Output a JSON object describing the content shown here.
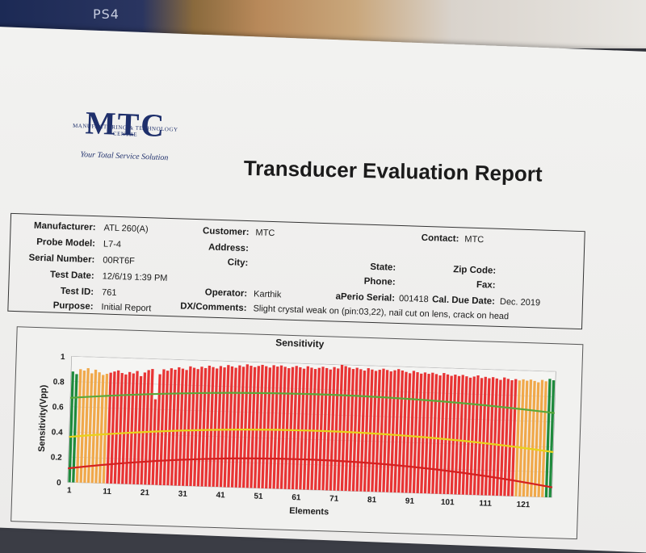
{
  "background": {
    "ps_logo": "PS4"
  },
  "logo": {
    "name": "MTC",
    "subtitle": "MANUFACTURING & TECHNOLOGY CENTRE",
    "tagline": "Your Total Service Solution"
  },
  "report": {
    "title": "Transducer Evaluation Report"
  },
  "fields": {
    "manufacturer": {
      "label": "Manufacturer:",
      "value": "ATL 260(A)"
    },
    "probe_model": {
      "label": "Probe Model:",
      "value": "L7-4"
    },
    "serial_number": {
      "label": "Serial Number:",
      "value": "00RT6F"
    },
    "test_date": {
      "label": "Test Date:",
      "value": "12/6/19 1:39 PM"
    },
    "test_id": {
      "label": "Test ID:",
      "value": "761"
    },
    "purpose": {
      "label": "Purpose:",
      "value": "Initial Report"
    },
    "customer": {
      "label": "Customer:",
      "value": "MTC"
    },
    "address": {
      "label": "Address:",
      "value": ""
    },
    "city": {
      "label": "City:",
      "value": ""
    },
    "operator": {
      "label": "Operator:",
      "value": "Karthik"
    },
    "dx_comments": {
      "label": "DX/Comments:",
      "value": "Slight crystal weak on (pin:03,22), nail cut on lens, crack on head"
    },
    "contact": {
      "label": "Contact:",
      "value": "MTC"
    },
    "state": {
      "label": "State:",
      "value": ""
    },
    "phone": {
      "label": "Phone:",
      "value": ""
    },
    "aperio_serial": {
      "label": "aPerio Serial:",
      "value": "001418"
    },
    "zip_code": {
      "label": "Zip Code:",
      "value": ""
    },
    "fax": {
      "label": "Fax:",
      "value": ""
    },
    "cal_due_date": {
      "label": "Cal. Due Date:",
      "value": "Dec. 2019"
    }
  },
  "colors": {
    "green": "#1e8a3c",
    "orange": "#f0a84a",
    "red": "#e83434",
    "green_line": "#5aa83a",
    "yellow_line": "#e8d21a",
    "red_line": "#d42020"
  },
  "chart_data": {
    "type": "bar",
    "title": "Sensitivity",
    "xlabel": "Elements",
    "ylabel": "Sensitivity(Vpp)",
    "ylim": [
      0,
      1
    ],
    "y_ticks": [
      "0",
      "0.2",
      "0.4",
      "0.6",
      "0.8",
      "1"
    ],
    "x_ticks": [
      "1",
      "11",
      "21",
      "31",
      "41",
      "51",
      "61",
      "71",
      "81",
      "91",
      "101",
      "111",
      "121"
    ],
    "elements": 128,
    "values": [
      0.88,
      0.86,
      0.9,
      0.89,
      0.91,
      0.87,
      0.9,
      0.88,
      0.86,
      0.87,
      0.88,
      0.89,
      0.9,
      0.88,
      0.87,
      0.89,
      0.88,
      0.9,
      0.86,
      0.89,
      0.91,
      0.92,
      0.68,
      0.88,
      0.92,
      0.91,
      0.93,
      0.92,
      0.94,
      0.93,
      0.92,
      0.95,
      0.94,
      0.93,
      0.95,
      0.94,
      0.96,
      0.95,
      0.94,
      0.96,
      0.95,
      0.97,
      0.96,
      0.95,
      0.97,
      0.96,
      0.98,
      0.97,
      0.96,
      0.97,
      0.98,
      0.97,
      0.96,
      0.98,
      0.97,
      0.98,
      0.97,
      0.96,
      0.97,
      0.98,
      0.97,
      0.96,
      0.98,
      0.97,
      0.96,
      0.97,
      0.98,
      0.97,
      0.96,
      0.98,
      0.97,
      1.0,
      0.99,
      0.98,
      0.97,
      0.98,
      0.97,
      0.96,
      0.98,
      0.97,
      0.96,
      0.97,
      0.98,
      0.97,
      0.96,
      0.97,
      0.98,
      0.97,
      0.96,
      0.95,
      0.97,
      0.96,
      0.95,
      0.96,
      0.95,
      0.96,
      0.95,
      0.94,
      0.96,
      0.95,
      0.94,
      0.95,
      0.94,
      0.95,
      0.94,
      0.93,
      0.94,
      0.95,
      0.93,
      0.94,
      0.93,
      0.94,
      0.93,
      0.92,
      0.94,
      0.93,
      0.92,
      0.93,
      0.92,
      0.93,
      0.92,
      0.93,
      0.92,
      0.91,
      0.93,
      0.92,
      0.94,
      0.93
    ],
    "bar_colors": [
      "green",
      "green",
      "orange",
      "orange",
      "orange",
      "orange",
      "orange",
      "orange",
      "orange",
      "orange",
      "red",
      "red",
      "red",
      "red",
      "red",
      "red",
      "red",
      "red",
      "red",
      "red",
      "red",
      "red",
      "red",
      "red",
      "red",
      "red",
      "red",
      "red",
      "red",
      "red",
      "red",
      "red",
      "red",
      "red",
      "red",
      "red",
      "red",
      "red",
      "red",
      "red",
      "red",
      "red",
      "red",
      "red",
      "red",
      "red",
      "red",
      "red",
      "red",
      "red",
      "red",
      "red",
      "red",
      "red",
      "red",
      "red",
      "red",
      "red",
      "red",
      "red",
      "red",
      "red",
      "red",
      "red",
      "red",
      "red",
      "red",
      "red",
      "red",
      "red",
      "red",
      "red",
      "red",
      "red",
      "red",
      "red",
      "red",
      "red",
      "red",
      "red",
      "red",
      "red",
      "red",
      "red",
      "red",
      "red",
      "red",
      "red",
      "red",
      "red",
      "red",
      "red",
      "red",
      "red",
      "red",
      "red",
      "red",
      "red",
      "red",
      "red",
      "red",
      "red",
      "red",
      "red",
      "red",
      "red",
      "red",
      "red",
      "red",
      "red",
      "red",
      "red",
      "red",
      "red",
      "red",
      "red",
      "red",
      "red",
      "orange",
      "orange",
      "orange",
      "orange",
      "orange",
      "orange",
      "orange",
      "orange",
      "green",
      "green"
    ],
    "threshold_lines": [
      {
        "color": "green_line",
        "values": [
          0.67,
          0.76,
          0.67
        ]
      },
      {
        "color": "yellow_line",
        "values": [
          0.36,
          0.47,
          0.36
        ]
      },
      {
        "color": "red_line",
        "values": [
          0.11,
          0.24,
          0.08
        ]
      }
    ]
  }
}
